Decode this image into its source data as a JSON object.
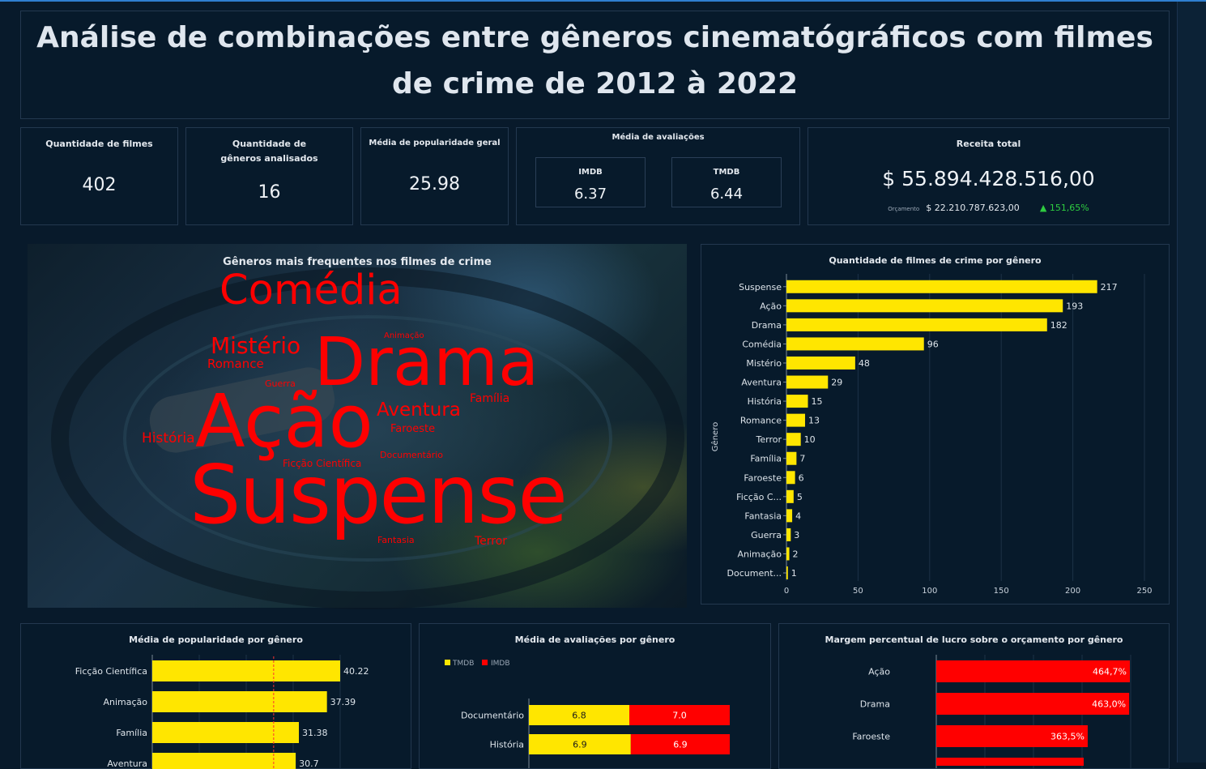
{
  "title": "Análise de combinações entre gêneros cinematógráficos com filmes de crime de 2012 à 2022",
  "kpis": {
    "qtd_filmes": {
      "label": "Quantidade de filmes",
      "value": "402"
    },
    "qtd_generos": {
      "label": "Quantidade de gêneros analisados",
      "value": "16"
    },
    "media_popularidade": {
      "label": "Média de popularidade geral",
      "value": "25.98"
    },
    "media_avaliacoes": {
      "label": "Média de avaliações",
      "imdb_label": "IMDB",
      "imdb_value": "6.37",
      "tmdb_label": "TMDB",
      "tmdb_value": "6.44"
    },
    "receita": {
      "label": "Receita total",
      "value": "$ 55.894.428.516,00",
      "budget_label": "Orçamento",
      "budget_value": "$ 22.210.787.623,00",
      "delta": "▲ 151,65%"
    }
  },
  "colors": {
    "yellow": "#ffe600",
    "red": "#ff0000",
    "green": "#2ecc40",
    "background": "#081a2b"
  },
  "wordcloud": {
    "title": "Gêneros mais frequentes nos filmes de crime",
    "words": [
      {
        "text": "Comédia",
        "weight": 96
      },
      {
        "text": "Drama",
        "weight": 182
      },
      {
        "text": "Ação",
        "weight": 193
      },
      {
        "text": "Suspense",
        "weight": 217
      },
      {
        "text": "Mistério",
        "weight": 48
      },
      {
        "text": "Romance",
        "weight": 13
      },
      {
        "text": "Animação",
        "weight": 2
      },
      {
        "text": "Guerra",
        "weight": 3
      },
      {
        "text": "Aventura",
        "weight": 29
      },
      {
        "text": "Família",
        "weight": 7
      },
      {
        "text": "Faroeste",
        "weight": 6
      },
      {
        "text": "História",
        "weight": 15
      },
      {
        "text": "Documentário",
        "weight": 1
      },
      {
        "text": "Ficção Científica",
        "weight": 5
      },
      {
        "text": "Fantasia",
        "weight": 4
      },
      {
        "text": "Terror",
        "weight": 10
      }
    ]
  },
  "chart_data": [
    {
      "id": "count",
      "type": "bar",
      "orientation": "horizontal",
      "title": "Quantidade de filmes de crime por gênero",
      "ylabel": "Gênero",
      "xlabel": "",
      "categories": [
        "Suspense",
        "Ação",
        "Drama",
        "Comédia",
        "Mistério",
        "Aventura",
        "História",
        "Romance",
        "Terror",
        "Família",
        "Faroeste",
        "Ficção C...",
        "Fantasia",
        "Guerra",
        "Animação",
        "Document..."
      ],
      "values": [
        217,
        193,
        182,
        96,
        48,
        29,
        15,
        13,
        10,
        7,
        6,
        5,
        4,
        3,
        2,
        1
      ],
      "xlim": [
        0,
        250
      ],
      "xticks": [
        "0",
        "50",
        "100",
        "150",
        "200",
        "250"
      ],
      "grid": true
    },
    {
      "id": "popularity",
      "type": "bar",
      "orientation": "horizontal",
      "title": "Média de popularidade por gênero",
      "categories": [
        "Ficção Científica",
        "Animação",
        "Família",
        "Aventura"
      ],
      "values": [
        40.22,
        37.39,
        31.38,
        30.7
      ],
      "value_labels": [
        "40.22",
        "37.39",
        "31.38",
        "30.7"
      ],
      "xlim": [
        0,
        60
      ],
      "reference_line": 25.98
    },
    {
      "id": "ratings",
      "type": "bar",
      "orientation": "horizontal",
      "stacked": true,
      "title": "Média de avaliações por gênero",
      "legend": [
        "TMDB",
        "IMDB"
      ],
      "legend_position": "top-left",
      "categories": [
        "Documentário",
        "História"
      ],
      "series": [
        {
          "name": "TMDB",
          "values": [
            6.8,
            6.9
          ]
        },
        {
          "name": "IMDB",
          "values": [
            7.0,
            6.9
          ]
        }
      ],
      "value_labels": {
        "TMDB": [
          "6.8",
          "6.9"
        ],
        "IMDB": [
          "7.0",
          "6.9"
        ]
      }
    },
    {
      "id": "margin",
      "type": "bar",
      "orientation": "horizontal",
      "title": "Margem percentual  de lucro sobre o orçamento por gênero",
      "categories": [
        "Ação",
        "Drama",
        "Faroeste"
      ],
      "values": [
        464.7,
        463.0,
        363.5
      ],
      "value_labels": [
        "464,7%",
        "463,0%",
        "363,5%"
      ],
      "xlim": [
        0,
        500
      ]
    }
  ]
}
